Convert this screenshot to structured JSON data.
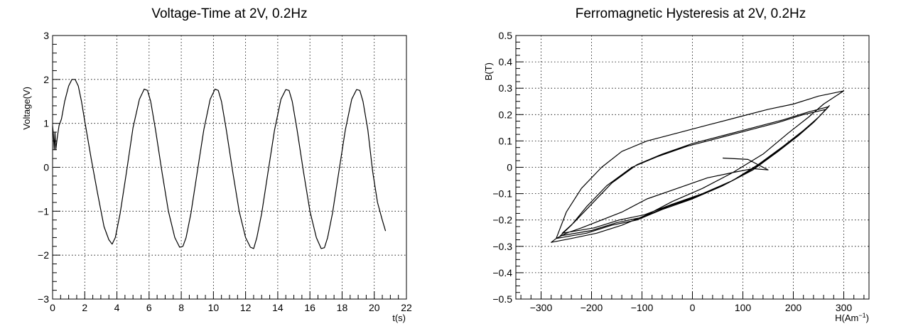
{
  "chart_data": [
    {
      "type": "line",
      "title": "Voltage-Time at 2V, 0.2Hz",
      "xlabel": "t(s)",
      "ylabel": "Voltage(V)",
      "xlim": [
        0,
        22
      ],
      "ylim": [
        -3,
        3
      ],
      "x_ticks": [
        0,
        2,
        4,
        6,
        8,
        10,
        12,
        14,
        16,
        18,
        20,
        22
      ],
      "y_ticks": [
        -3,
        -2,
        -1,
        0,
        1,
        2,
        3
      ],
      "x_tick_labels": [
        "0",
        "2",
        "4",
        "6",
        "8",
        "10",
        "12",
        "14",
        "16",
        "18",
        "20",
        "22"
      ],
      "y_tick_labels": [
        "−3",
        "−2",
        "−1",
        "0",
        "1",
        "2",
        "3"
      ],
      "grid": true,
      "series": [
        {
          "color": "#000000",
          "x": [
            0.0,
            0.05,
            0.1,
            0.15,
            0.2,
            0.3,
            0.4,
            0.55,
            0.75,
            1.0,
            1.2,
            1.4,
            1.6,
            1.8,
            2.0,
            2.4,
            2.8,
            3.2,
            3.5,
            3.7,
            3.9,
            4.2,
            4.6,
            5.0,
            5.4,
            5.7,
            5.9,
            6.1,
            6.4,
            6.8,
            7.2,
            7.6,
            7.9,
            8.1,
            8.3,
            8.6,
            9.0,
            9.4,
            9.8,
            10.1,
            10.3,
            10.5,
            10.8,
            11.2,
            11.6,
            12.0,
            12.3,
            12.5,
            12.7,
            13.0,
            13.4,
            13.8,
            14.2,
            14.5,
            14.7,
            14.9,
            15.2,
            15.6,
            16.0,
            16.4,
            16.7,
            16.9,
            17.1,
            17.4,
            17.8,
            18.2,
            18.6,
            18.9,
            19.1,
            19.3,
            19.6,
            19.9,
            20.2,
            20.5,
            20.7
          ],
          "y": [
            0.95,
            0.75,
            0.4,
            0.8,
            0.4,
            0.7,
            0.95,
            1.1,
            1.5,
            1.85,
            2.0,
            2.0,
            1.85,
            1.5,
            1.05,
            0.2,
            -0.6,
            -1.35,
            -1.65,
            -1.75,
            -1.6,
            -1.05,
            -0.1,
            0.9,
            1.55,
            1.78,
            1.75,
            1.5,
            0.85,
            -0.1,
            -1.0,
            -1.6,
            -1.82,
            -1.8,
            -1.6,
            -1.05,
            -0.1,
            0.85,
            1.55,
            1.78,
            1.75,
            1.5,
            0.85,
            -0.1,
            -1.0,
            -1.6,
            -1.82,
            -1.85,
            -1.6,
            -1.05,
            -0.1,
            0.85,
            1.55,
            1.77,
            1.75,
            1.5,
            0.85,
            -0.1,
            -1.0,
            -1.6,
            -1.85,
            -1.83,
            -1.6,
            -1.05,
            -0.1,
            0.85,
            1.55,
            1.77,
            1.75,
            1.5,
            0.85,
            -0.1,
            -0.8,
            -1.2,
            -1.45
          ]
        }
      ]
    },
    {
      "type": "line",
      "title": "Ferromagnetic Hysteresis at 2V, 0.2Hz",
      "xlabel": "H(Am",
      "xlabel_sup": "−1",
      "xlabel_end": ")",
      "ylabel": "B(T)",
      "xlim": [
        -350,
        350
      ],
      "ylim": [
        -0.5,
        0.5
      ],
      "x_ticks": [
        -300,
        -200,
        -100,
        0,
        100,
        200,
        300
      ],
      "y_ticks": [
        -0.5,
        -0.4,
        -0.3,
        -0.2,
        -0.1,
        0,
        0.1,
        0.2,
        0.3,
        0.4,
        0.5
      ],
      "x_tick_labels": [
        "−300",
        "−200",
        "−100",
        "0",
        "100",
        "200",
        "300"
      ],
      "y_tick_labels": [
        "−0.5",
        "−0.4",
        "−0.3",
        "−0.2",
        "−0.1",
        "0",
        "0.1",
        "0.2",
        "0.3",
        "0.4",
        "0.5"
      ],
      "grid": true,
      "series": [
        {
          "color": "#000000",
          "x": [
            60,
            110,
            150,
            120,
            80,
            30,
            -30,
            -90,
            -140,
            -180,
            -220,
            -250,
            -270,
            -280,
            -240,
            -190,
            -140,
            -90,
            -40,
            20,
            80,
            140,
            190,
            230,
            260,
            300,
            250,
            200,
            150,
            90,
            30,
            -30,
            -90,
            -140,
            -180,
            -220,
            -250,
            -270,
            -210,
            -160,
            -110,
            -60,
            0,
            60,
            120,
            170,
            210,
            240,
            265,
            220,
            170,
            110,
            50,
            -10,
            -70,
            -120,
            -170,
            -210,
            -240,
            -262,
            -200,
            -150,
            -100,
            -50,
            10,
            70,
            125,
            175,
            215,
            245,
            270,
            230,
            180,
            120,
            60,
            0,
            -60,
            -110,
            -160,
            -200,
            -235,
            -258,
            -195,
            -145,
            -95,
            -40,
            20,
            80,
            130,
            180,
            220,
            250,
            272
          ],
          "y": [
            0.035,
            0.03,
            -0.01,
            -0.005,
            -0.02,
            -0.04,
            -0.08,
            -0.12,
            -0.17,
            -0.2,
            -0.23,
            -0.25,
            -0.27,
            -0.285,
            -0.27,
            -0.25,
            -0.22,
            -0.18,
            -0.13,
            -0.08,
            -0.02,
            0.05,
            0.13,
            0.19,
            0.24,
            0.29,
            0.27,
            0.24,
            0.22,
            0.19,
            0.16,
            0.13,
            0.1,
            0.06,
            0.0,
            -0.08,
            -0.17,
            -0.27,
            -0.25,
            -0.22,
            -0.2,
            -0.16,
            -0.12,
            -0.07,
            -0.01,
            0.06,
            0.12,
            0.17,
            0.22,
            0.2,
            0.17,
            0.14,
            0.11,
            0.08,
            0.04,
            0.0,
            -0.07,
            -0.15,
            -0.22,
            -0.26,
            -0.24,
            -0.21,
            -0.19,
            -0.15,
            -0.11,
            -0.06,
            0.0,
            0.07,
            0.13,
            0.18,
            0.23,
            0.21,
            0.18,
            0.15,
            0.12,
            0.09,
            0.05,
            0.01,
            -0.06,
            -0.14,
            -0.21,
            -0.25,
            -0.23,
            -0.2,
            -0.18,
            -0.14,
            -0.1,
            -0.05,
            0.01,
            0.08,
            0.14,
            0.19,
            0.235
          ]
        }
      ]
    }
  ]
}
